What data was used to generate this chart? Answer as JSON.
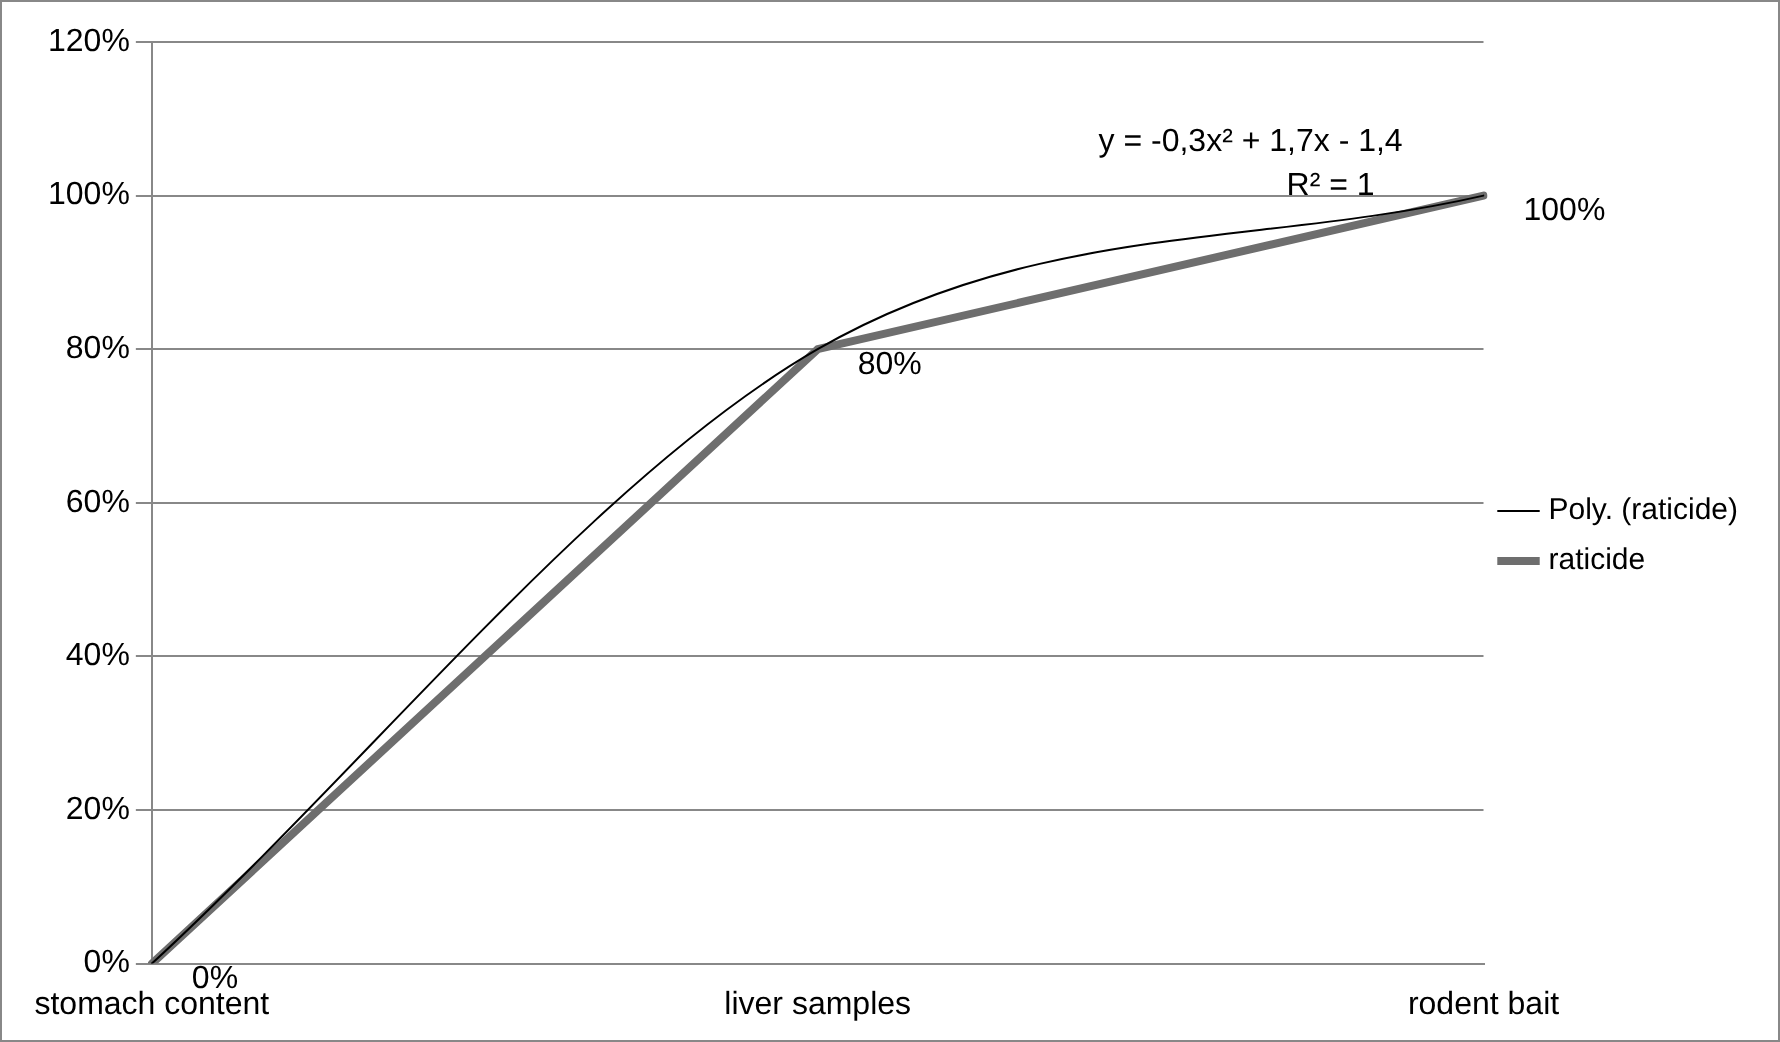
{
  "chart_data": {
    "type": "line",
    "categories": [
      "stomach content",
      "liver samples",
      "rodent bait"
    ],
    "series": [
      {
        "name": "raticide",
        "type": "line",
        "color": "#6e6e6e",
        "values": [
          0,
          80,
          100
        ],
        "value_labels": [
          "0%",
          "80%",
          "100%"
        ]
      },
      {
        "name": "Poly. (raticide)",
        "type": "line",
        "color": "#000000",
        "values": [
          0,
          80,
          100
        ]
      }
    ],
    "ylim": [
      0,
      120
    ],
    "yticks": [
      {
        "value": 0,
        "label": "0%"
      },
      {
        "value": 20,
        "label": "20%"
      },
      {
        "value": 40,
        "label": "40%"
      },
      {
        "value": 60,
        "label": "60%"
      },
      {
        "value": 80,
        "label": "80%"
      },
      {
        "value": 100,
        "label": "100%"
      },
      {
        "value": 120,
        "label": "120%"
      }
    ],
    "annotations": [
      "y = -0,3x² + 1,7x - 1,4",
      "R² = 1"
    ],
    "grid": "y",
    "legend": "right",
    "marker": "none"
  }
}
